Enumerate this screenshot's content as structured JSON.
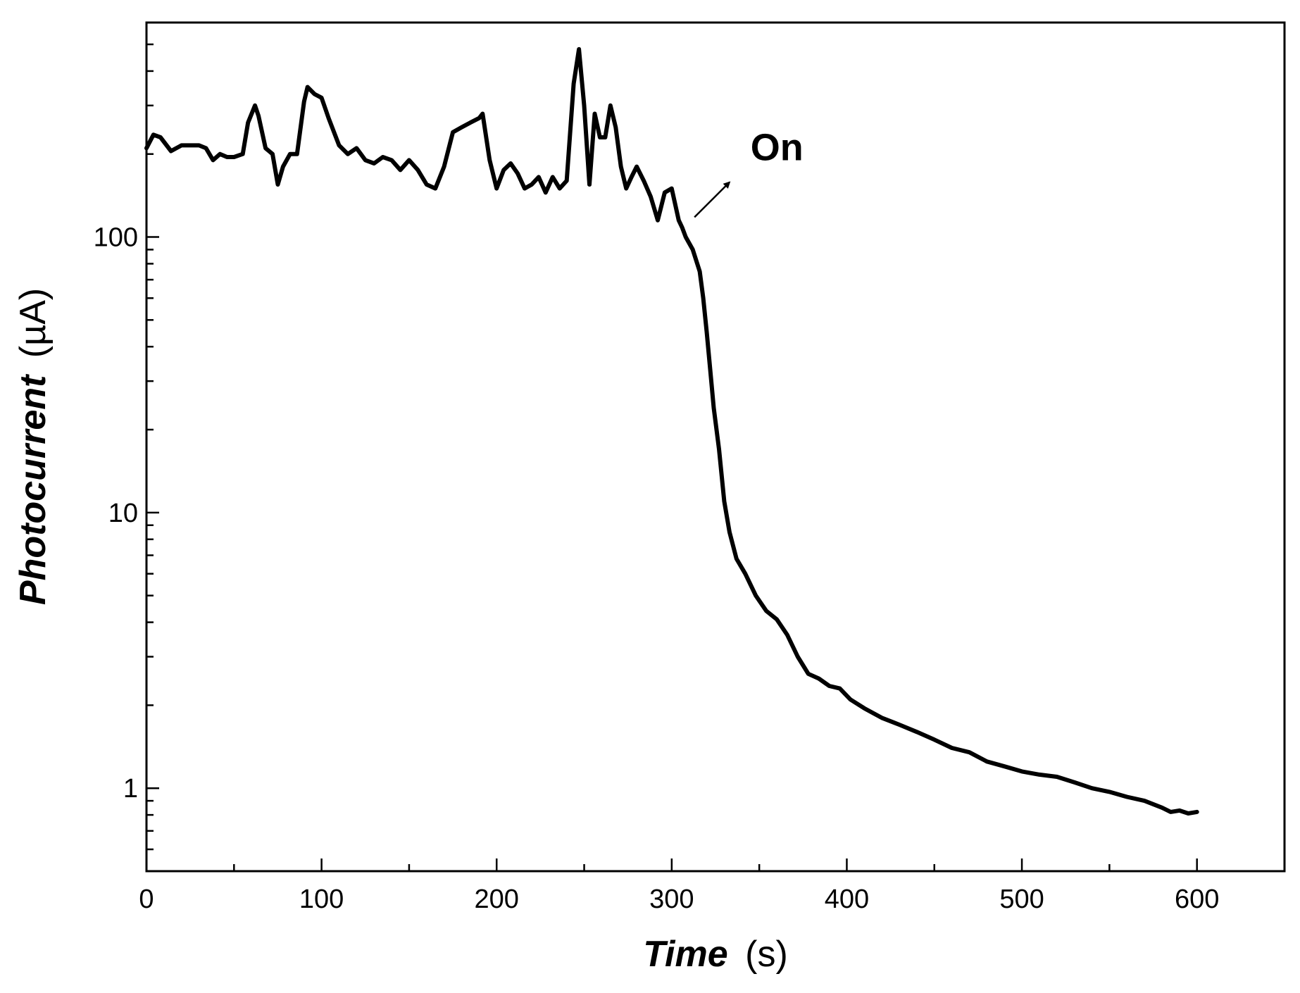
{
  "chart_data": {
    "type": "line",
    "xlabel": {
      "main": "Time",
      "unit": "(s)"
    },
    "ylabel": {
      "main": "Photocurrent",
      "unit": "(µA)"
    },
    "xlim": [
      0,
      650
    ],
    "ylim": [
      0.5,
      600
    ],
    "yscale": "log",
    "grid": false,
    "xticks": [
      0,
      100,
      200,
      300,
      400,
      500,
      600
    ],
    "yticks": [
      1,
      10,
      100
    ],
    "annotations": [
      {
        "text": "On",
        "x": 345,
        "y": 190,
        "arrow_from": [
          313,
          118
        ],
        "arrow_to": [
          333,
          158
        ]
      }
    ],
    "series": [
      {
        "color": "#000000",
        "x": [
          0,
          4,
          8,
          14,
          20,
          30,
          34,
          38,
          42,
          46,
          50,
          55,
          58,
          62,
          64,
          68,
          72,
          75,
          78,
          82,
          86,
          90,
          92,
          96,
          100,
          104,
          110,
          115,
          120,
          125,
          130,
          135,
          140,
          145,
          150,
          155,
          160,
          165,
          170,
          175,
          180,
          185,
          190,
          192,
          196,
          200,
          204,
          208,
          212,
          216,
          220,
          224,
          228,
          232,
          236,
          240,
          244,
          247,
          250,
          253,
          256,
          259,
          262,
          265,
          268,
          271,
          274,
          277,
          280,
          284,
          288,
          292,
          296,
          300,
          304,
          306,
          308,
          312,
          316,
          318,
          320,
          322,
          324,
          327,
          330,
          333,
          337,
          342,
          348,
          354,
          360,
          366,
          372,
          378,
          384,
          390,
          396,
          402,
          410,
          420,
          430,
          440,
          450,
          460,
          470,
          480,
          490,
          500,
          510,
          520,
          530,
          540,
          550,
          560,
          570,
          580,
          585,
          590,
          595,
          600
        ],
        "y": [
          210,
          235,
          230,
          205,
          215,
          215,
          210,
          190,
          200,
          195,
          195,
          200,
          260,
          300,
          275,
          210,
          200,
          155,
          180,
          200,
          200,
          310,
          350,
          330,
          320,
          270,
          215,
          200,
          210,
          190,
          185,
          195,
          190,
          175,
          190,
          175,
          155,
          150,
          180,
          240,
          250,
          260,
          270,
          280,
          190,
          150,
          175,
          185,
          170,
          150,
          155,
          165,
          145,
          165,
          150,
          160,
          360,
          480,
          300,
          155,
          280,
          230,
          230,
          300,
          250,
          180,
          150,
          165,
          180,
          160,
          140,
          115,
          145,
          150,
          115,
          108,
          100,
          90,
          75,
          60,
          45,
          33,
          24,
          17,
          11,
          8.5,
          6.8,
          6.0,
          5.0,
          4.4,
          4.1,
          3.6,
          3.0,
          2.6,
          2.5,
          2.35,
          2.3,
          2.1,
          1.95,
          1.8,
          1.7,
          1.6,
          1.5,
          1.4,
          1.35,
          1.25,
          1.2,
          1.15,
          1.12,
          1.1,
          1.05,
          1.0,
          0.97,
          0.93,
          0.9,
          0.85,
          0.82,
          0.83,
          0.81,
          0.82
        ]
      }
    ]
  }
}
